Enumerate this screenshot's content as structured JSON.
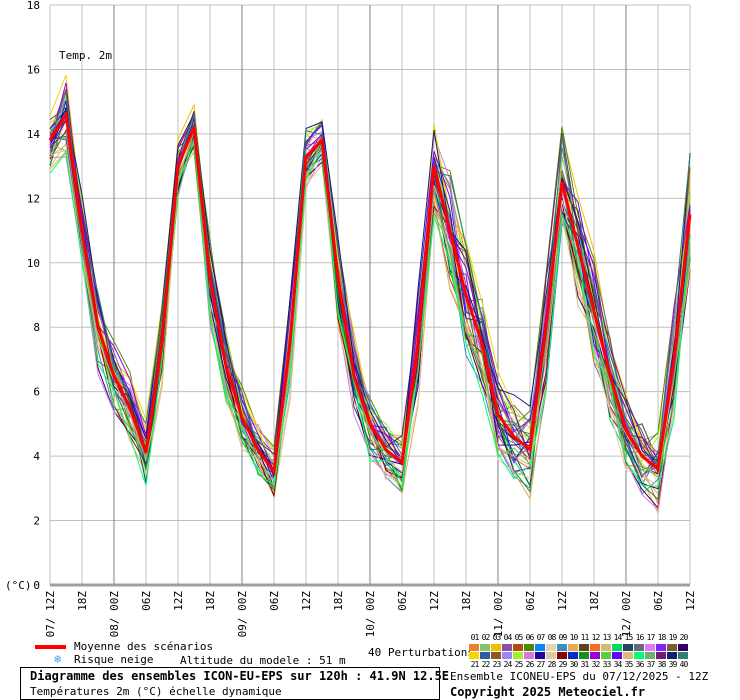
{
  "chart_data": {
    "type": "line",
    "title": "Temp. 2m",
    "ylabel": "(°C)",
    "ylim": [
      0,
      18
    ],
    "yticks": [
      "0",
      "2",
      "4",
      "6",
      "8",
      "10",
      "12",
      "14",
      "16",
      "18"
    ],
    "xticks": [
      {
        "time": "12Z",
        "date": "07/"
      },
      {
        "time": "18Z",
        "date": ""
      },
      {
        "time": "00Z",
        "date": "08/"
      },
      {
        "time": "06Z",
        "date": ""
      },
      {
        "time": "12Z",
        "date": ""
      },
      {
        "time": "18Z",
        "date": ""
      },
      {
        "time": "00Z",
        "date": "09/"
      },
      {
        "time": "06Z",
        "date": ""
      },
      {
        "time": "12Z",
        "date": ""
      },
      {
        "time": "18Z",
        "date": ""
      },
      {
        "time": "00Z",
        "date": "10/"
      },
      {
        "time": "06Z",
        "date": ""
      },
      {
        "time": "12Z",
        "date": ""
      },
      {
        "time": "18Z",
        "date": ""
      },
      {
        "time": "00Z",
        "date": "11/"
      },
      {
        "time": "06Z",
        "date": ""
      },
      {
        "time": "12Z",
        "date": ""
      },
      {
        "time": "18Z",
        "date": ""
      },
      {
        "time": "00Z",
        "date": "12/"
      },
      {
        "time": "06Z",
        "date": ""
      },
      {
        "time": "12Z",
        "date": ""
      }
    ],
    "x_hours_step": 3,
    "x_range_hours": [
      0,
      120
    ],
    "mean_series": {
      "name": "Moyenne des scénarios",
      "color": "#ff0000",
      "values": [
        13.8,
        14.6,
        11.0,
        8.0,
        6.5,
        5.5,
        4.1,
        7.5,
        13.0,
        14.2,
        9.5,
        6.8,
        5.2,
        4.2,
        3.5,
        7.5,
        13.3,
        13.8,
        9.5,
        6.5,
        5.0,
        4.2,
        3.8,
        7.5,
        13.0,
        11.0,
        9.0,
        7.5,
        5.3,
        4.6,
        4.2,
        8.0,
        12.5,
        10.5,
        8.5,
        6.5,
        4.8,
        4.0,
        3.6,
        7.0,
        11.5
      ]
    },
    "member_spread": [
      0.8,
      1.1,
      1.0,
      1.2,
      1.0,
      1.0,
      0.9,
      1.2,
      0.9,
      0.6,
      1.2,
      1.1,
      0.9,
      0.8,
      0.7,
      1.5,
      0.8,
      0.7,
      1.2,
      1.2,
      0.9,
      0.9,
      0.9,
      1.6,
      1.3,
      1.8,
      1.8,
      1.6,
      1.2,
      1.2,
      1.3,
      2.0,
      1.6,
      1.7,
      1.6,
      1.4,
      1.1,
      1.1,
      1.1,
      1.8,
      2.2
    ],
    "members": {
      "label": "40 Perturbations",
      "numbers": [
        "01",
        "02",
        "03",
        "04",
        "05",
        "06",
        "07",
        "08",
        "09",
        "10",
        "11",
        "12",
        "13",
        "14",
        "15",
        "16",
        "17",
        "18",
        "19",
        "20",
        "21",
        "22",
        "23",
        "24",
        "25",
        "26",
        "27",
        "28",
        "29",
        "30",
        "31",
        "32",
        "33",
        "34",
        "35",
        "36",
        "37",
        "38",
        "39",
        "40"
      ],
      "colors": [
        "#e8832c",
        "#84c46b",
        "#f0c000",
        "#8a4fa8",
        "#b04c0c",
        "#4e8a00",
        "#0a84ff",
        "#e8d4b0",
        "#3c8cc0",
        "#e8a858",
        "#5a4418",
        "#f86c20",
        "#d0bc78",
        "#00d860",
        "#244460",
        "#646c78",
        "#e078f8",
        "#8020ff",
        "#7c5c2c",
        "#30006c",
        "#f0d800",
        "#2c5c9c",
        "#905820",
        "#9c88f0",
        "#a0f030",
        "#d878d8",
        "#20009c",
        "#e0c8a0",
        "#880000",
        "#0030c0",
        "#189018",
        "#9c00d8",
        "#58d038",
        "#6800ff",
        "#e0b878",
        "#00ff70",
        "#70b070",
        "#701c70",
        "#102070",
        "#2c8070"
      ]
    }
  },
  "legend": {
    "mean_label": "Moyenne des scénarios",
    "snow_label": "Risque neige",
    "altitude": "Altitude du modele : 51 m"
  },
  "footer": {
    "title": "Diagramme des ensembles ICON-EU-EPS sur 120h : 41.9N 12.5E",
    "subtitle": "Températures 2m (°C) échelle dynamique",
    "run": "Ensemble ICONEU-EPS du 07/12/2025 - 12Z",
    "copyright": "Copyright 2025 Meteociel.fr"
  }
}
